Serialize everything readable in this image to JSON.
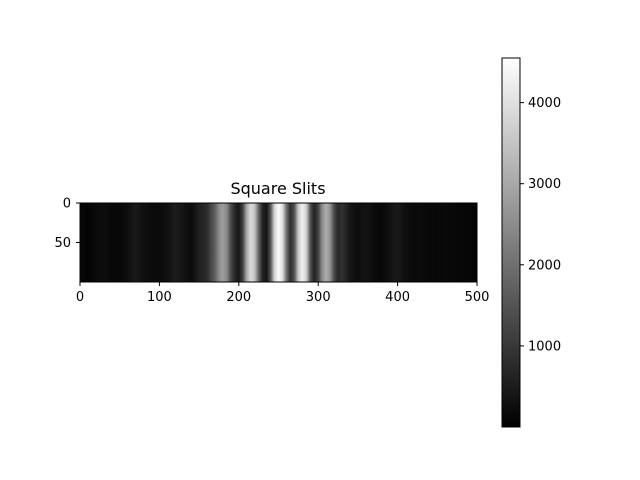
{
  "chart_data": {
    "type": "heatmap",
    "title": "Square Slits",
    "xlabel": "",
    "ylabel": "",
    "colormap": "gray",
    "image_shape": {
      "rows": 100,
      "cols": 500
    },
    "xlim": [
      0,
      500
    ],
    "ylim": [
      100,
      0
    ],
    "x_ticks": [
      0,
      100,
      200,
      300,
      400,
      500
    ],
    "y_ticks": [
      0,
      50
    ],
    "colorbar": {
      "range": [
        0,
        4550
      ],
      "ticks": [
        1000,
        2000,
        3000,
        4000
      ]
    },
    "profile": {
      "description_x": "column index",
      "x": [
        0,
        10,
        20,
        30,
        40,
        50,
        60,
        70,
        80,
        90,
        100,
        110,
        120,
        130,
        140,
        150,
        160,
        170,
        175,
        180,
        185,
        190,
        195,
        200,
        205,
        210,
        215,
        220,
        225,
        230,
        235,
        240,
        245,
        250,
        255,
        260,
        265,
        270,
        275,
        280,
        285,
        290,
        295,
        300,
        305,
        310,
        315,
        320,
        325,
        330,
        340,
        350,
        360,
        370,
        380,
        390,
        400,
        410,
        420,
        430,
        440,
        450,
        460,
        470,
        480,
        490,
        500
      ],
      "values": [
        150,
        80,
        180,
        250,
        150,
        130,
        250,
        450,
        280,
        200,
        200,
        300,
        500,
        350,
        200,
        550,
        800,
        1700,
        2500,
        2800,
        2400,
        1300,
        700,
        400,
        1200,
        3000,
        3900,
        3500,
        1800,
        600,
        350,
        1500,
        3800,
        4500,
        4000,
        2000,
        800,
        1500,
        3600,
        4300,
        3700,
        1500,
        600,
        1200,
        2500,
        3100,
        2600,
        1300,
        700,
        900,
        400,
        250,
        350,
        200,
        150,
        300,
        450,
        250,
        180,
        200,
        150,
        120,
        180,
        140,
        100,
        90,
        80
      ]
    }
  }
}
